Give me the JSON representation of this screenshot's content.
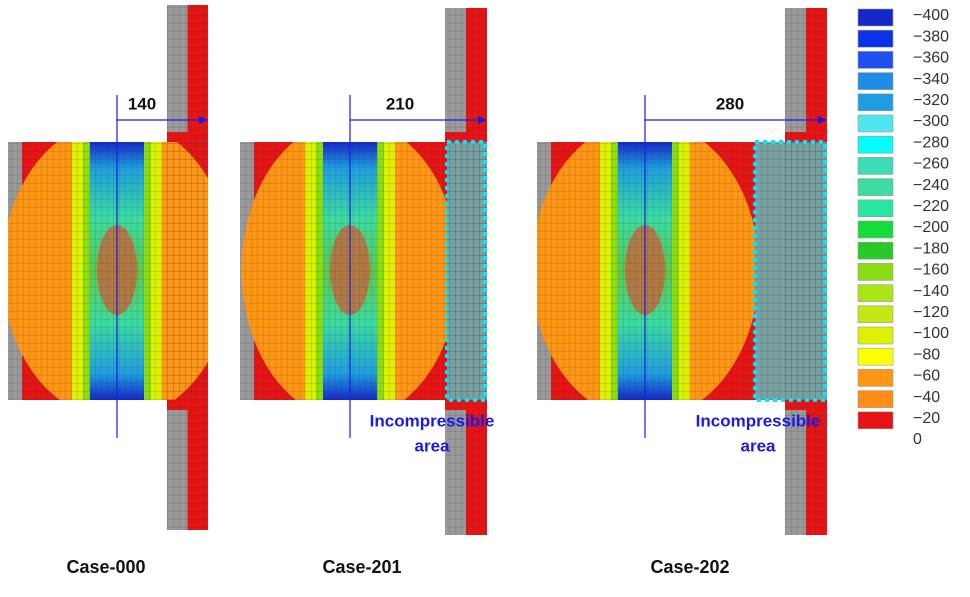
{
  "panels": [
    {
      "label": "Case-000",
      "dimension": "140"
    },
    {
      "label": "Case-201",
      "dimension": "210",
      "annotation": [
        "Incompressible",
        "area"
      ]
    },
    {
      "label": "Case-202",
      "dimension": "280",
      "annotation": [
        "Incompressible",
        "area"
      ]
    }
  ],
  "legend": {
    "labels": [
      "−400",
      "−380",
      "−360",
      "−340",
      "−320",
      "−300",
      "−280",
      "−260",
      "−240",
      "−220",
      "−200",
      "−180",
      "−160",
      "−140",
      "−120",
      "−100",
      "−80",
      "−60",
      "−40",
      "−20",
      "0"
    ],
    "colors": [
      "#1428c8",
      "#0a32e6",
      "#1e50f0",
      "#1e8ce6",
      "#1e9ee0",
      "#50e6f0",
      "#00ffff",
      "#3cdcb4",
      "#3cdca0",
      "#28e6a0",
      "#14dc3c",
      "#28c828",
      "#8cdc14",
      "#aae614",
      "#c8e614",
      "#dcf000",
      "#ffff00",
      "#ff9614",
      "#ff8c14",
      "#e61414"
    ]
  }
}
